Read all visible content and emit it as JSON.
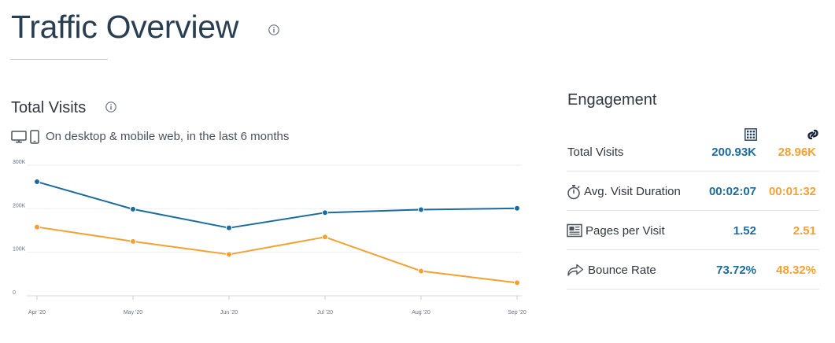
{
  "header": {
    "title": "Traffic Overview"
  },
  "visits_section": {
    "title": "Total Visits",
    "subtitle": "On desktop & mobile web, in the last 6 months"
  },
  "chart_data": {
    "type": "line",
    "x": [
      "Apr '20",
      "May '20",
      "Jun '20",
      "Jul '20",
      "Aug '20",
      "Sep '20"
    ],
    "y_ticks": [
      {
        "value": 0,
        "label": "0"
      },
      {
        "value": 100000,
        "label": "100K"
      },
      {
        "value": 200000,
        "label": "200K"
      },
      {
        "value": 300000,
        "label": "300K"
      }
    ],
    "ylim": [
      0,
      300000
    ],
    "grid": true,
    "series": [
      {
        "color": "#1b6c9e",
        "values": [
          262000,
          199000,
          156000,
          191000,
          198000,
          201000
        ]
      },
      {
        "color": "#f4a132",
        "values": [
          158000,
          125000,
          95000,
          135000,
          57000,
          30000
        ]
      }
    ]
  },
  "engagement": {
    "title": "Engagement",
    "colors": {
      "site_a": "#1b6c9e",
      "site_b": "#f4a132"
    },
    "column_icons": [
      "grid-logo-icon",
      "link-logo-icon"
    ],
    "rows": [
      {
        "icon": "",
        "label": "Total Visits",
        "a": "200.93K",
        "b": "28.96K"
      },
      {
        "icon": "stopwatch-icon",
        "label": "Avg. Visit Duration",
        "a": "00:02:07",
        "b": "00:01:32"
      },
      {
        "icon": "pages-icon",
        "label": "Pages per Visit",
        "a": "1.52",
        "b": "2.51"
      },
      {
        "icon": "share-arrow-icon",
        "label": "Bounce Rate",
        "a": "73.72%",
        "b": "48.32%"
      }
    ]
  }
}
